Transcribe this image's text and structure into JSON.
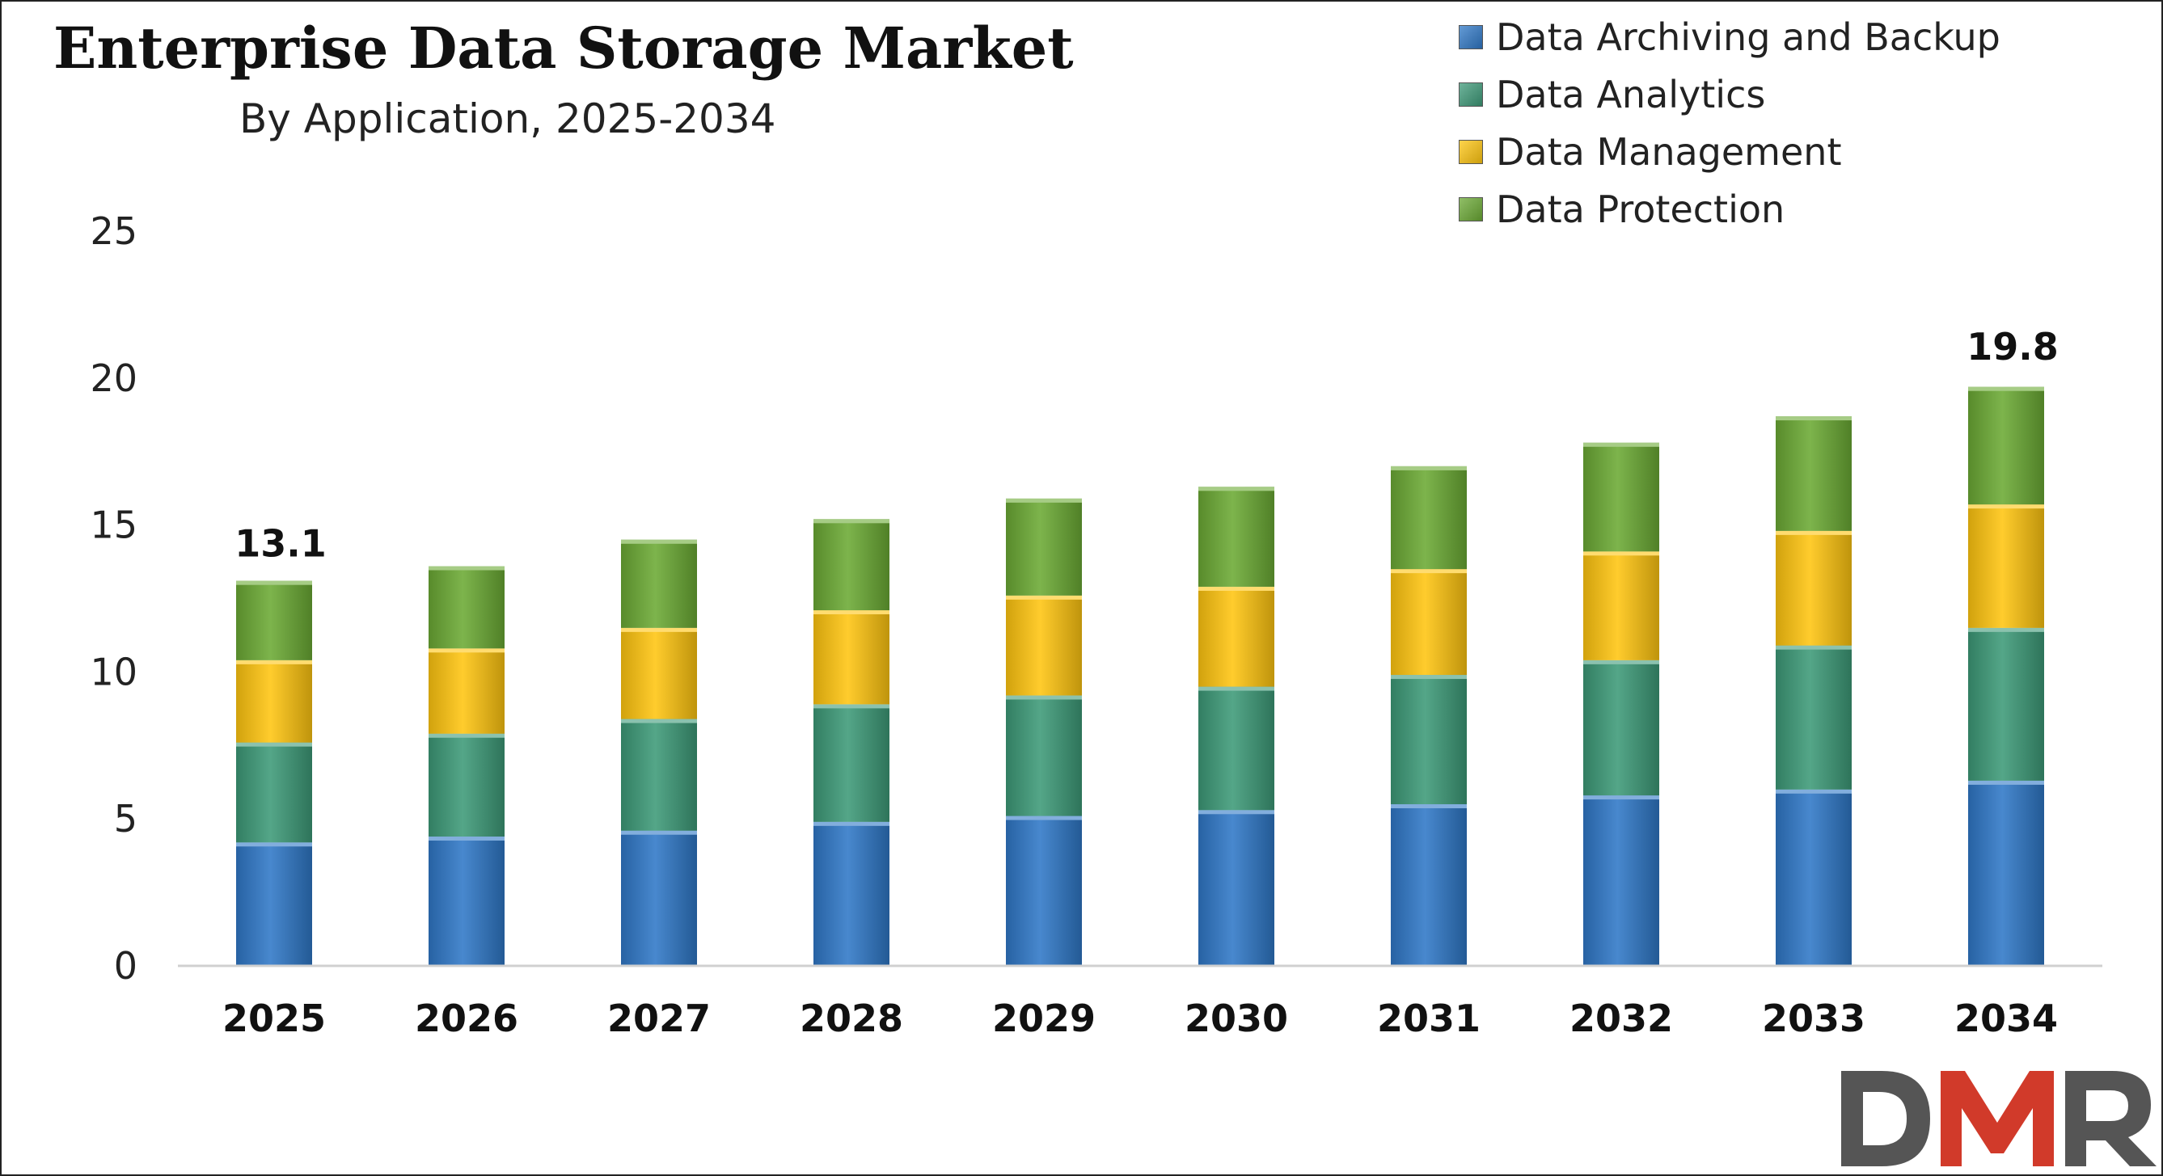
{
  "chart_data": {
    "type": "bar",
    "stacked": true,
    "title": "Enterprise Data Storage Market",
    "subtitle": "By Application, 2025-2034",
    "xlabel": "",
    "ylabel": "",
    "categories": [
      "2025",
      "2026",
      "2027",
      "2028",
      "2029",
      "2030",
      "2031",
      "2032",
      "2033",
      "2034"
    ],
    "series": [
      {
        "name": "Data Archiving and Backup",
        "color": "#2F78C7",
        "values": [
          4.2,
          4.4,
          4.6,
          4.9,
          5.1,
          5.3,
          5.5,
          5.8,
          6.0,
          6.3
        ]
      },
      {
        "name": "Data Analytics",
        "color": "#3D9A78",
        "values": [
          3.4,
          3.5,
          3.8,
          4.0,
          4.1,
          4.2,
          4.4,
          4.6,
          4.9,
          5.2
        ]
      },
      {
        "name": "Data Management",
        "color": "#FFC510",
        "values": [
          2.8,
          2.9,
          3.1,
          3.2,
          3.4,
          3.4,
          3.6,
          3.7,
          3.9,
          4.2
        ]
      },
      {
        "name": "Data Protection",
        "color": "#6BAA34",
        "values": [
          2.7,
          2.8,
          3.0,
          3.1,
          3.3,
          3.4,
          3.5,
          3.7,
          3.9,
          4.0
        ]
      }
    ],
    "ylim": [
      0,
      25
    ],
    "yticks": [
      0,
      5,
      10,
      15,
      20,
      25
    ],
    "grid": false,
    "legend_position": "top-right",
    "data_labels": [
      {
        "category": "2025",
        "text": "13.1",
        "value": 13.1
      },
      {
        "category": "2034",
        "text": "19.8",
        "value": 19.8
      }
    ]
  },
  "logo": {
    "text": "DMR",
    "colors": [
      "#555555",
      "#d13a2a"
    ]
  }
}
